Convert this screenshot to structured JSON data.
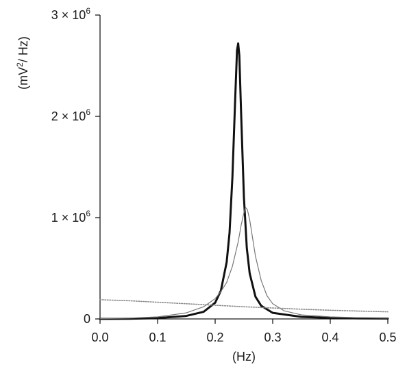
{
  "chart_data": {
    "type": "line",
    "title": "",
    "xlabel": "(Hz)",
    "ylabel_parts": [
      "(mV",
      "2",
      "/ Hz)"
    ],
    "xlim": [
      0,
      0.5
    ],
    "ylim": [
      0,
      3000000
    ],
    "grid": false,
    "x_ticks": [
      {
        "value": 0.0,
        "label": "0.0"
      },
      {
        "value": 0.1,
        "label": "0.1"
      },
      {
        "value": 0.2,
        "label": "0.2"
      },
      {
        "value": 0.3,
        "label": "0.3"
      },
      {
        "value": 0.4,
        "label": "0.4"
      },
      {
        "value": 0.5,
        "label": "0.5"
      }
    ],
    "y_ticks": [
      {
        "value": 0,
        "label": "0",
        "exp": ""
      },
      {
        "value": 1000000,
        "label": "1 × 10",
        "exp": "6"
      },
      {
        "value": 2000000,
        "label": "2 × 10",
        "exp": "6"
      },
      {
        "value": 3000000,
        "label": "3 × 10",
        "exp": "6"
      }
    ],
    "series": [
      {
        "style": "thick",
        "color": "#111111",
        "x": [
          0.0,
          0.05,
          0.1,
          0.15,
          0.18,
          0.2,
          0.21,
          0.22,
          0.225,
          0.23,
          0.235,
          0.238,
          0.24,
          0.242,
          0.245,
          0.25,
          0.255,
          0.26,
          0.27,
          0.28,
          0.3,
          0.35,
          0.4,
          0.45,
          0.5
        ],
        "y": [
          0,
          2000,
          8000,
          30000,
          70000,
          160000,
          280000,
          560000,
          850000,
          1400000,
          2200000,
          2650000,
          2720000,
          2600000,
          2050000,
          1200000,
          700000,
          450000,
          220000,
          130000,
          60000,
          20000,
          10000,
          6000,
          4000
        ]
      },
      {
        "style": "thin",
        "color": "#777777",
        "x": [
          0.0,
          0.05,
          0.1,
          0.15,
          0.18,
          0.2,
          0.21,
          0.22,
          0.23,
          0.24,
          0.245,
          0.25,
          0.253,
          0.256,
          0.26,
          0.265,
          0.27,
          0.28,
          0.29,
          0.3,
          0.32,
          0.35,
          0.4,
          0.45,
          0.5
        ],
        "y": [
          3000,
          8000,
          20000,
          60000,
          120000,
          200000,
          270000,
          360000,
          520000,
          760000,
          920000,
          1050000,
          1100000,
          1080000,
          980000,
          800000,
          620000,
          380000,
          230000,
          150000,
          80000,
          40000,
          20000,
          12000,
          8000
        ]
      },
      {
        "style": "dotted",
        "color": "#888888",
        "x": [
          0.0,
          0.05,
          0.1,
          0.15,
          0.2,
          0.25,
          0.3,
          0.35,
          0.4,
          0.45,
          0.5
        ],
        "y": [
          190000,
          180000,
          165000,
          150000,
          135000,
          120000,
          108000,
          96000,
          86000,
          78000,
          70000
        ]
      }
    ]
  }
}
